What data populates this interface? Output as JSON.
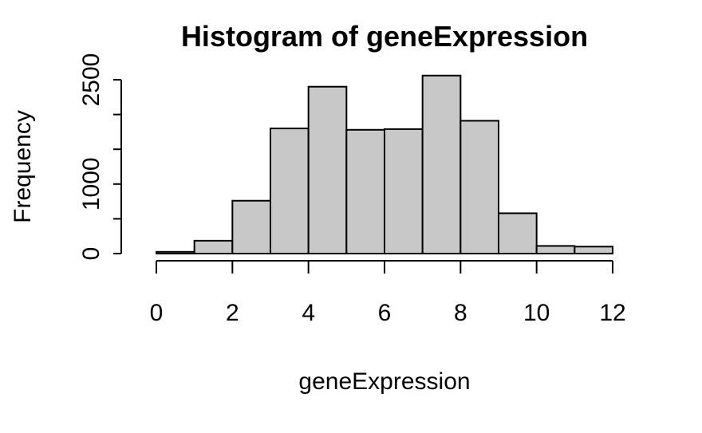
{
  "chart_data": {
    "type": "bar",
    "title": "Histogram of geneExpression",
    "xlabel": "geneExpression",
    "ylabel": "Frequency",
    "bins": [
      {
        "x0": 0,
        "x1": 1,
        "count": 25
      },
      {
        "x0": 1,
        "x1": 2,
        "count": 185
      },
      {
        "x0": 2,
        "x1": 3,
        "count": 760
      },
      {
        "x0": 3,
        "x1": 4,
        "count": 1800
      },
      {
        "x0": 4,
        "x1": 5,
        "count": 2400
      },
      {
        "x0": 5,
        "x1": 6,
        "count": 1780
      },
      {
        "x0": 6,
        "x1": 7,
        "count": 1790
      },
      {
        "x0": 7,
        "x1": 8,
        "count": 2560
      },
      {
        "x0": 8,
        "x1": 9,
        "count": 1910
      },
      {
        "x0": 9,
        "x1": 10,
        "count": 580
      },
      {
        "x0": 10,
        "x1": 11,
        "count": 110
      },
      {
        "x0": 11,
        "x1": 12,
        "count": 100
      }
    ],
    "xlim": [
      0,
      12
    ],
    "ylim": [
      0,
      2500
    ],
    "x_ticks": [
      0,
      2,
      4,
      6,
      8,
      10,
      12
    ],
    "y_ticks": [
      0,
      500,
      1000,
      1500,
      2000,
      2500
    ],
    "y_tick_labels": [
      "0",
      "",
      "1000",
      "",
      "",
      "2500"
    ],
    "bar_color": "#c8c8c8",
    "border_color": "#000000",
    "grid": false
  }
}
